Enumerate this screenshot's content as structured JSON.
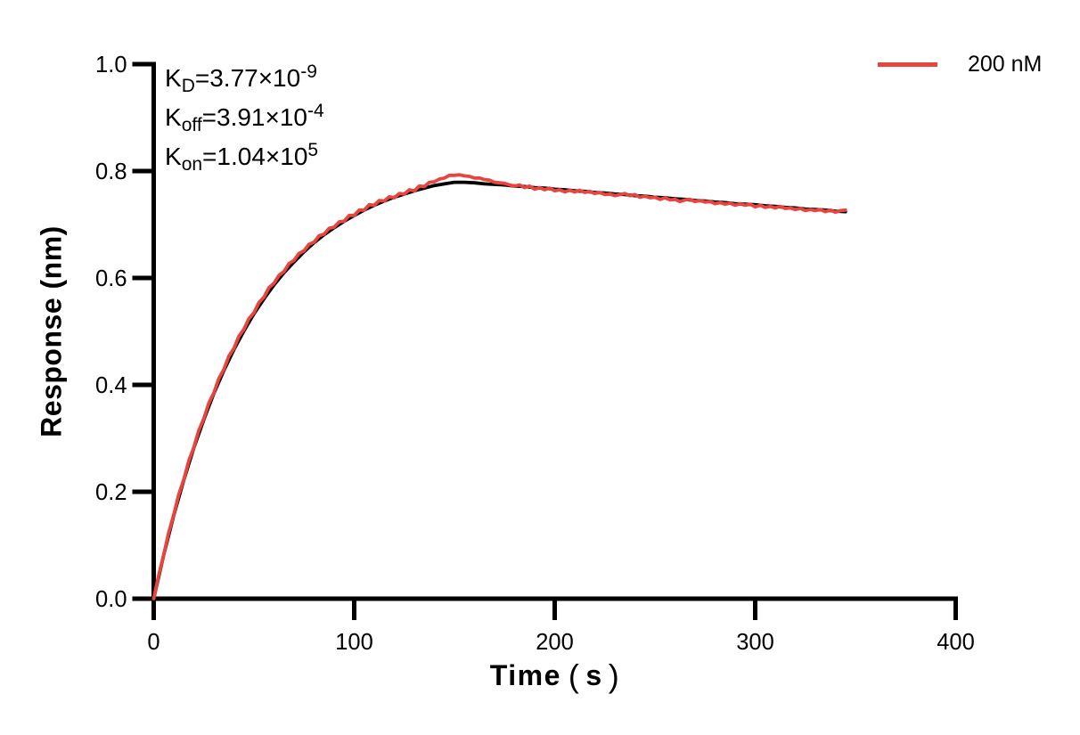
{
  "chart_data": {
    "type": "line",
    "xlabel": "Time（s）",
    "xlabel_parts": {
      "word": "Time",
      "open": "(",
      "inner": "s",
      "close": ")"
    },
    "ylabel": "Response (nm)",
    "xlim": [
      0,
      400
    ],
    "ylim": [
      0.0,
      1.0
    ],
    "x_ticks": [
      "0",
      "100",
      "200",
      "300",
      "400"
    ],
    "x_tick_values": [
      0,
      100,
      200,
      300,
      400
    ],
    "y_ticks": [
      "0.0",
      "0.2",
      "0.4",
      "0.6",
      "0.8",
      "1.0"
    ],
    "y_tick_values": [
      0.0,
      0.2,
      0.4,
      0.6,
      0.8,
      1.0
    ],
    "grid": false,
    "legend_position": "top-right",
    "series": [
      {
        "name": "fit",
        "color": "#000000",
        "stroke_width": 3.8,
        "x_start": 0,
        "x_step": 5,
        "values": [
          0,
          0.082,
          0.156,
          0.222,
          0.282,
          0.335,
          0.384,
          0.427,
          0.466,
          0.501,
          0.533,
          0.561,
          0.587,
          0.61,
          0.63,
          0.649,
          0.666,
          0.681,
          0.694,
          0.706,
          0.717,
          0.727,
          0.736,
          0.744,
          0.751,
          0.757,
          0.763,
          0.768,
          0.773,
          0.776,
          0.779,
          0.779,
          0.778,
          0.776,
          0.775,
          0.774,
          0.772,
          0.771,
          0.769,
          0.768,
          0.766,
          0.765,
          0.763,
          0.762,
          0.76,
          0.759,
          0.757,
          0.756,
          0.754,
          0.753,
          0.751,
          0.75,
          0.748,
          0.747,
          0.745,
          0.744,
          0.742,
          0.741,
          0.739,
          0.738,
          0.737,
          0.735,
          0.734,
          0.732,
          0.731,
          0.729,
          0.728,
          0.727,
          0.725,
          0.724
        ]
      },
      {
        "name": "200 nM",
        "color": "#E8453E",
        "stroke_width": 3.8,
        "x_start": 0,
        "x_step": 2.5,
        "values": [
          0,
          0.044,
          0.082,
          0.124,
          0.157,
          0.195,
          0.223,
          0.258,
          0.283,
          0.315,
          0.337,
          0.366,
          0.385,
          0.412,
          0.429,
          0.454,
          0.468,
          0.491,
          0.504,
          0.524,
          0.535,
          0.554,
          0.564,
          0.582,
          0.59,
          0.605,
          0.612,
          0.627,
          0.633,
          0.646,
          0.651,
          0.663,
          0.667,
          0.679,
          0.682,
          0.693,
          0.695,
          0.705,
          0.706,
          0.717,
          0.717,
          0.727,
          0.727,
          0.737,
          0.736,
          0.745,
          0.744,
          0.752,
          0.75,
          0.758,
          0.757,
          0.765,
          0.763,
          0.772,
          0.771,
          0.779,
          0.78,
          0.785,
          0.787,
          0.792,
          0.792,
          0.793,
          0.791,
          0.79,
          0.787,
          0.787,
          0.784,
          0.783,
          0.779,
          0.778,
          0.777,
          0.774,
          0.772,
          0.774,
          0.769,
          0.772,
          0.766,
          0.769,
          0.765,
          0.768,
          0.763,
          0.765,
          0.761,
          0.764,
          0.761,
          0.764,
          0.76,
          0.762,
          0.758,
          0.76,
          0.756,
          0.757,
          0.754,
          0.756,
          0.758,
          0.754,
          0.756,
          0.751,
          0.753,
          0.75,
          0.751,
          0.747,
          0.75,
          0.746,
          0.747,
          0.743,
          0.746,
          0.747,
          0.743,
          0.745,
          0.742,
          0.743,
          0.739,
          0.741,
          0.738,
          0.74,
          0.736,
          0.739,
          0.736,
          0.738,
          0.733,
          0.736,
          0.732,
          0.734,
          0.731,
          0.734,
          0.73,
          0.731,
          0.728,
          0.73,
          0.726,
          0.728,
          0.726,
          0.728,
          0.724,
          0.727,
          0.723,
          0.726,
          0.727
        ]
      }
    ],
    "legend": {
      "label": "200 nM",
      "color": "#E8453E"
    },
    "annotations": [
      {
        "base": "K",
        "sub": "D",
        "mid": "=3.77×10",
        "sup": "-9"
      },
      {
        "base": "K",
        "sub": "off",
        "mid": "=3.91×10",
        "sup": "-4"
      },
      {
        "base": "K",
        "sub": "on",
        "mid": "=1.04×10",
        "sup": "5"
      }
    ]
  }
}
